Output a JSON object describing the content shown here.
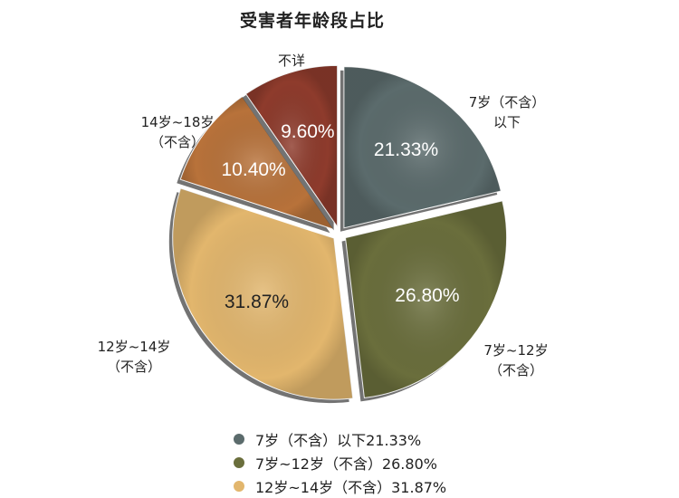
{
  "chart_data": {
    "type": "pie",
    "title": "受害者年龄段占比",
    "slices": [
      {
        "outer_label": [
          "7岁（不含）",
          "以下"
        ],
        "value": 21.33,
        "value_label": "21.33%",
        "color": "#5b6b6c",
        "label_color": "#ffffff"
      },
      {
        "outer_label": [
          "7岁~12岁",
          "（不含）"
        ],
        "value": 26.8,
        "value_label": "26.80%",
        "color": "#6a6e3c",
        "label_color": "#ffffff"
      },
      {
        "outer_label": [
          "12岁~14岁",
          "（不含）"
        ],
        "value": 31.87,
        "value_label": "31.87%",
        "color": "#e2b66d",
        "label_color": "#222222"
      },
      {
        "outer_label": [
          "14岁~18岁",
          "（不含）"
        ],
        "value": 10.4,
        "value_label": "10.40%",
        "color": "#b8723a",
        "label_color": "#ffffff"
      },
      {
        "outer_label": [
          "不详"
        ],
        "value": 9.6,
        "value_label": "9.60%",
        "color": "#8e3b2c",
        "label_color": "#ffffff"
      }
    ],
    "legend": [
      {
        "label": "7岁（不含）以下21.33%",
        "color": "#5b6b6c"
      },
      {
        "label": "7岁~12岁（不含）26.80%",
        "color": "#6a6e3c"
      },
      {
        "label": "12岁~14岁（不含）31.87%",
        "color": "#e2b66d"
      }
    ]
  }
}
